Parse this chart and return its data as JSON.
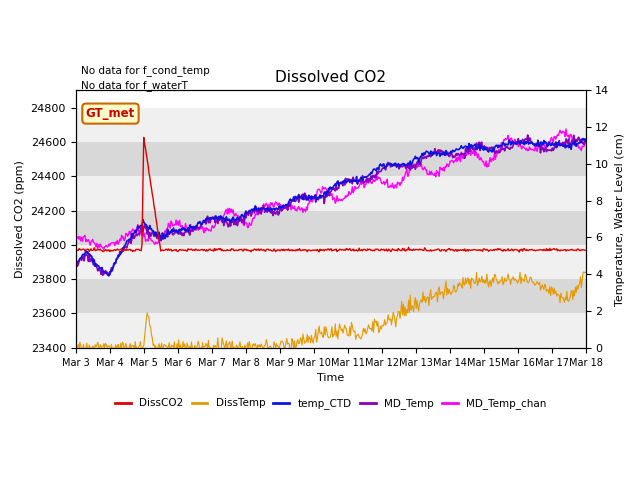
{
  "title": "Dissolved CO2",
  "xlabel": "Time",
  "ylabel_left": "Dissolved CO2 (ppm)",
  "ylabel_right": "Temperature, Water Level (cm)",
  "annotation_lines": [
    "No data for f_cond_temp",
    "No data for f_waterT"
  ],
  "gt_met_label": "GT_met",
  "ylim_left": [
    23400,
    24900
  ],
  "ylim_right": [
    0,
    14
  ],
  "yticks_left": [
    23400,
    23600,
    23800,
    24000,
    24200,
    24400,
    24600,
    24800
  ],
  "yticks_right": [
    0,
    2,
    4,
    6,
    8,
    10,
    12,
    14
  ],
  "xtick_labels": [
    "Mar 3",
    "Mar 4",
    "Mar 5",
    "Mar 6",
    "Mar 7",
    "Mar 8",
    "Mar 9",
    "Mar 10",
    "Mar 11",
    "Mar 12",
    "Mar 13",
    "Mar 14",
    "Mar 15",
    "Mar 16",
    "Mar 17",
    "Mar 18"
  ],
  "colors": {
    "DissCO2": "#dd0000",
    "DissTemp": "#e69900",
    "temp_CTD": "#1111dd",
    "MD_Temp": "#8800bb",
    "MD_Temp_chan": "#ff00ff",
    "background_light": "#f0f0f0",
    "background_dark": "#d8d8d8",
    "gt_met_bg": "#ffffcc",
    "gt_met_border": "#cc6600",
    "gt_met_text": "#cc0000"
  },
  "legend_labels": [
    "DissCO2",
    "DissTemp",
    "temp_CTD",
    "MD_Temp",
    "MD_Temp_chan"
  ],
  "n_points": 600
}
